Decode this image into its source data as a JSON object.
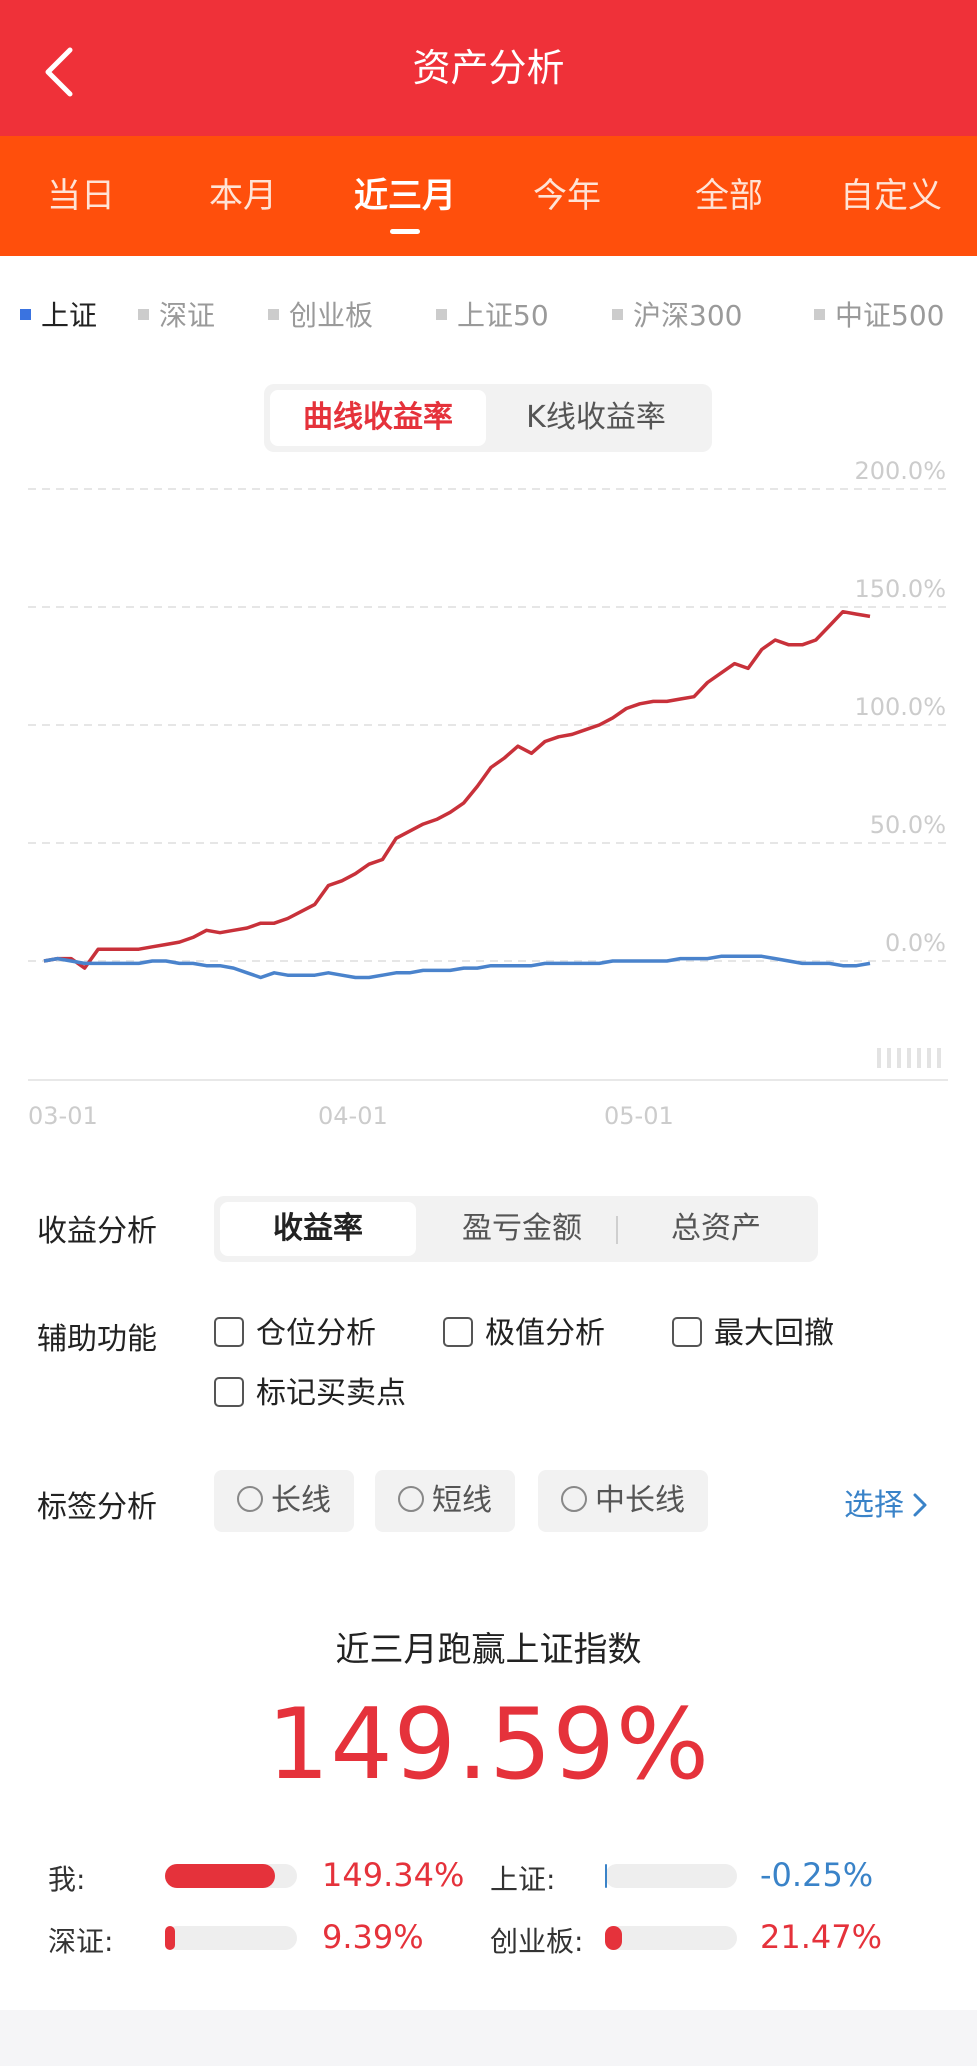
{
  "header": {
    "title": "资产分析"
  },
  "period_tabs": [
    "当日",
    "本月",
    "近三月",
    "今年",
    "全部",
    "自定义"
  ],
  "active_period": "近三月",
  "indices": [
    "上证",
    "深证",
    "创业板",
    "上证50",
    "沪深300",
    "中证500"
  ],
  "active_index": "上证",
  "chart_mode": {
    "options": [
      "曲线收益率",
      "K线收益率"
    ],
    "active": "曲线收益率"
  },
  "chart_data": {
    "type": "line",
    "y_ticks": [
      "200.0%",
      "150.0%",
      "100.0%",
      "50.0%",
      "0.0%"
    ],
    "ylim": [
      -50,
      200
    ],
    "x_ticks": [
      "03-01",
      "04-01",
      "05-01"
    ],
    "grid": true,
    "series": [
      {
        "color": "#c8313a",
        "values": [
          0,
          1,
          1,
          -3,
          5,
          5,
          5,
          5,
          6,
          7,
          8,
          10,
          13,
          12,
          13,
          14,
          16,
          16,
          18,
          21,
          24,
          32,
          34,
          37,
          41,
          43,
          52,
          55,
          58,
          60,
          63,
          67,
          74,
          82,
          86,
          91,
          88,
          93,
          95,
          96,
          98,
          100,
          103,
          107,
          109,
          110,
          110,
          111,
          112,
          118,
          122,
          126,
          124,
          132,
          136,
          134,
          134,
          136,
          142,
          148,
          147,
          146
        ]
      },
      {
        "color": "#4a83cc",
        "values": [
          0,
          1,
          0,
          -1,
          -1,
          -1,
          -1,
          -1,
          0,
          0,
          -1,
          -1,
          -2,
          -2,
          -3,
          -5,
          -7,
          -5,
          -6,
          -6,
          -6,
          -5,
          -6,
          -7,
          -7,
          -6,
          -5,
          -5,
          -4,
          -4,
          -4,
          -3,
          -3,
          -2,
          -2,
          -2,
          -2,
          -1,
          -1,
          -1,
          -1,
          -1,
          0,
          0,
          0,
          0,
          0,
          1,
          1,
          1,
          2,
          2,
          2,
          2,
          1,
          0,
          -1,
          -1,
          -1,
          -2,
          -2,
          -1
        ]
      }
    ]
  },
  "analysis": {
    "label": "收益分析",
    "options": [
      "收益率",
      "盈亏金额",
      "总资产"
    ],
    "active": "收益率"
  },
  "aux": {
    "label": "辅助功能",
    "options": [
      "仓位分析",
      "极值分析",
      "最大回撤",
      "标记买卖点"
    ]
  },
  "tags": {
    "label": "标签分析",
    "options": [
      "长线",
      "短线",
      "中长线"
    ],
    "choose": "选择"
  },
  "summary": {
    "title": "近三月跑赢上证指数",
    "value": "149.59%"
  },
  "compare": [
    {
      "label": "我:",
      "value": "149.34%",
      "fraction": 0.83,
      "color": "#e5323b"
    },
    {
      "label": "上证:",
      "value": "-0.25%",
      "fraction": 0.0,
      "color": "#3a83c8"
    },
    {
      "label": "深证:",
      "value": "9.39%",
      "fraction": 0.06,
      "color": "#e5323b"
    },
    {
      "label": "创业板:",
      "value": "21.47%",
      "fraction": 0.13,
      "color": "#e5323b"
    }
  ]
}
